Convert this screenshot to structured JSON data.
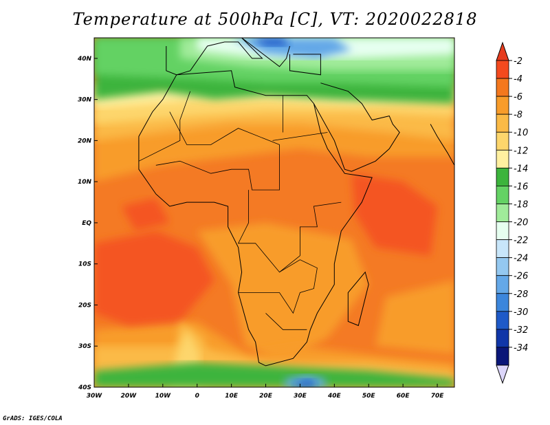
{
  "title": "Temperature at 500hPa [C], VT: 2020022818",
  "credit": "GrADS: IGES/COLA",
  "map": {
    "lon_labels": [
      "30W",
      "20W",
      "10W",
      "0",
      "10E",
      "20E",
      "30E",
      "40E",
      "50E",
      "60E",
      "70E"
    ],
    "lat_labels": [
      "40N",
      "30N",
      "20N",
      "10N",
      "EQ",
      "10S",
      "20S",
      "30S",
      "40S"
    ],
    "lon_range": [
      -30,
      75
    ],
    "lat_range": [
      -40,
      45
    ]
  },
  "colorbar": {
    "labels": [
      "-2",
      "-4",
      "-6",
      "-8",
      "-10",
      "-12",
      "-14",
      "-16",
      "-18",
      "-20",
      "-22",
      "-24",
      "-26",
      "-28",
      "-30",
      "-32",
      "-34"
    ],
    "colors": [
      "#f44a1e",
      "#f4781e",
      "#f89c2a",
      "#fbba46",
      "#fdd66c",
      "#fff0a0",
      "#3cb43c",
      "#64d264",
      "#a0eb9a",
      "#e6fff0",
      "#c8e6fa",
      "#94c8f0",
      "#64a8e8",
      "#3c86dc",
      "#1e5ac8",
      "#1036a8",
      "#0a1678"
    ],
    "top_arrow_color": "#e63c1e",
    "bottom_arrow_color": "#dcd6fa"
  },
  "field_colors": {
    "ocean_warm": "#f47a24",
    "hot": "#f45420",
    "land_warm": "#f89c2a",
    "mild": "#fbba46",
    "cool": "#fdd66c",
    "pale": "#fff0a0",
    "green": "#3cb43c",
    "light_green": "#64d264",
    "pale_green": "#a0eb9a",
    "cyan": "#e6fff0",
    "blue": "#64a8e8",
    "dark_blue": "#1e5ac8"
  }
}
